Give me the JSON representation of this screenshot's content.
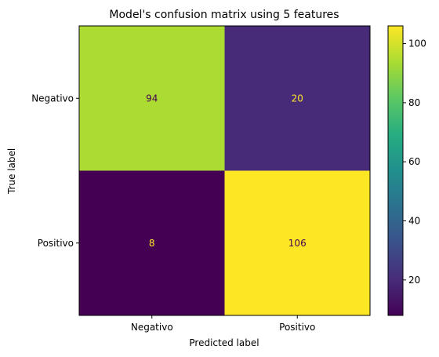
{
  "chart_data": {
    "type": "heatmap",
    "title": "Model's confusion matrix using 5 features",
    "xlabel": "Predicted label",
    "ylabel": "True label",
    "x_categories": [
      "Negativo",
      "Positivo"
    ],
    "y_categories": [
      "Negativo",
      "Positivo"
    ],
    "values": [
      [
        94,
        20
      ],
      [
        8,
        106
      ]
    ],
    "colormap": "viridis",
    "colorbar": {
      "range": [
        8,
        106
      ],
      "ticks": [
        "20",
        "40",
        "60",
        "80",
        "100"
      ]
    },
    "grid": false
  }
}
